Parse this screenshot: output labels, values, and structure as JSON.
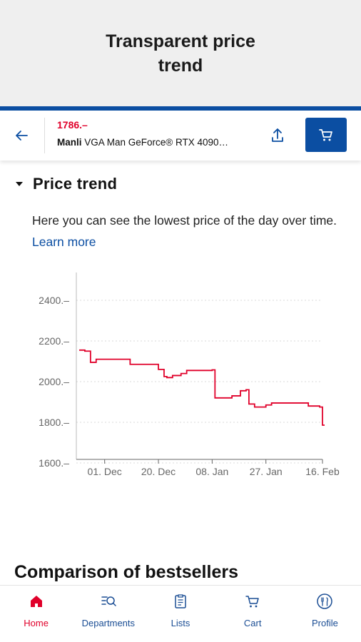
{
  "promo": {
    "title": "Transparent price trend"
  },
  "topbar": {
    "price": "1786.–",
    "product_brand": "Manli",
    "product_name": " VGA Man GeForce® RTX 4090…"
  },
  "section": {
    "title": "Price trend",
    "description": "Here you can see the lowest price of the day over time. ",
    "learn_more": "Learn more"
  },
  "chart_data": {
    "type": "line",
    "title": "",
    "xlabel": "",
    "ylabel": "",
    "ylim": [
      1600,
      2400
    ],
    "y_ticks": [
      "2400.–",
      "2200.–",
      "2000.–",
      "1800.–",
      "1600.–"
    ],
    "x_ticks": [
      "01. Dec",
      "20. Dec",
      "08. Jan",
      "27. Jan",
      "16. Feb"
    ],
    "grid": true,
    "line_color": "#e0002a",
    "series": [
      {
        "step": true,
        "points": [
          [
            "2023-11-22",
            2155
          ],
          [
            "2023-11-24",
            2150
          ],
          [
            "2023-11-26",
            2095
          ],
          [
            "2023-11-28",
            2110
          ],
          [
            "2023-12-10",
            2085
          ],
          [
            "2023-12-20",
            2060
          ],
          [
            "2023-12-22",
            2025
          ],
          [
            "2023-12-23",
            2020
          ],
          [
            "2023-12-25",
            2030
          ],
          [
            "2023-12-28",
            2040
          ],
          [
            "2023-12-30",
            2055
          ],
          [
            "2024-01-08",
            2058
          ],
          [
            "2024-01-09",
            1920
          ],
          [
            "2024-01-15",
            1930
          ],
          [
            "2024-01-18",
            1955
          ],
          [
            "2024-01-20",
            1960
          ],
          [
            "2024-01-21",
            1890
          ],
          [
            "2024-01-23",
            1875
          ],
          [
            "2024-01-27",
            1885
          ],
          [
            "2024-01-29",
            1895
          ],
          [
            "2024-02-11",
            1880
          ],
          [
            "2024-02-15",
            1875
          ],
          [
            "2024-02-16",
            1786
          ]
        ]
      }
    ]
  },
  "bottom": {
    "title": "Comparison of bestsellers"
  },
  "tabs": [
    {
      "label": "Home",
      "icon": "home-icon",
      "active": true
    },
    {
      "label": "Departments",
      "icon": "departments-icon",
      "active": false
    },
    {
      "label": "Lists",
      "icon": "lists-icon",
      "active": false
    },
    {
      "label": "Cart",
      "icon": "cart-icon",
      "active": false
    },
    {
      "label": "Profile",
      "icon": "profile-icon",
      "active": false
    }
  ],
  "colors": {
    "brand_blue": "#0b4ea2",
    "accent_red": "#e0002a"
  }
}
